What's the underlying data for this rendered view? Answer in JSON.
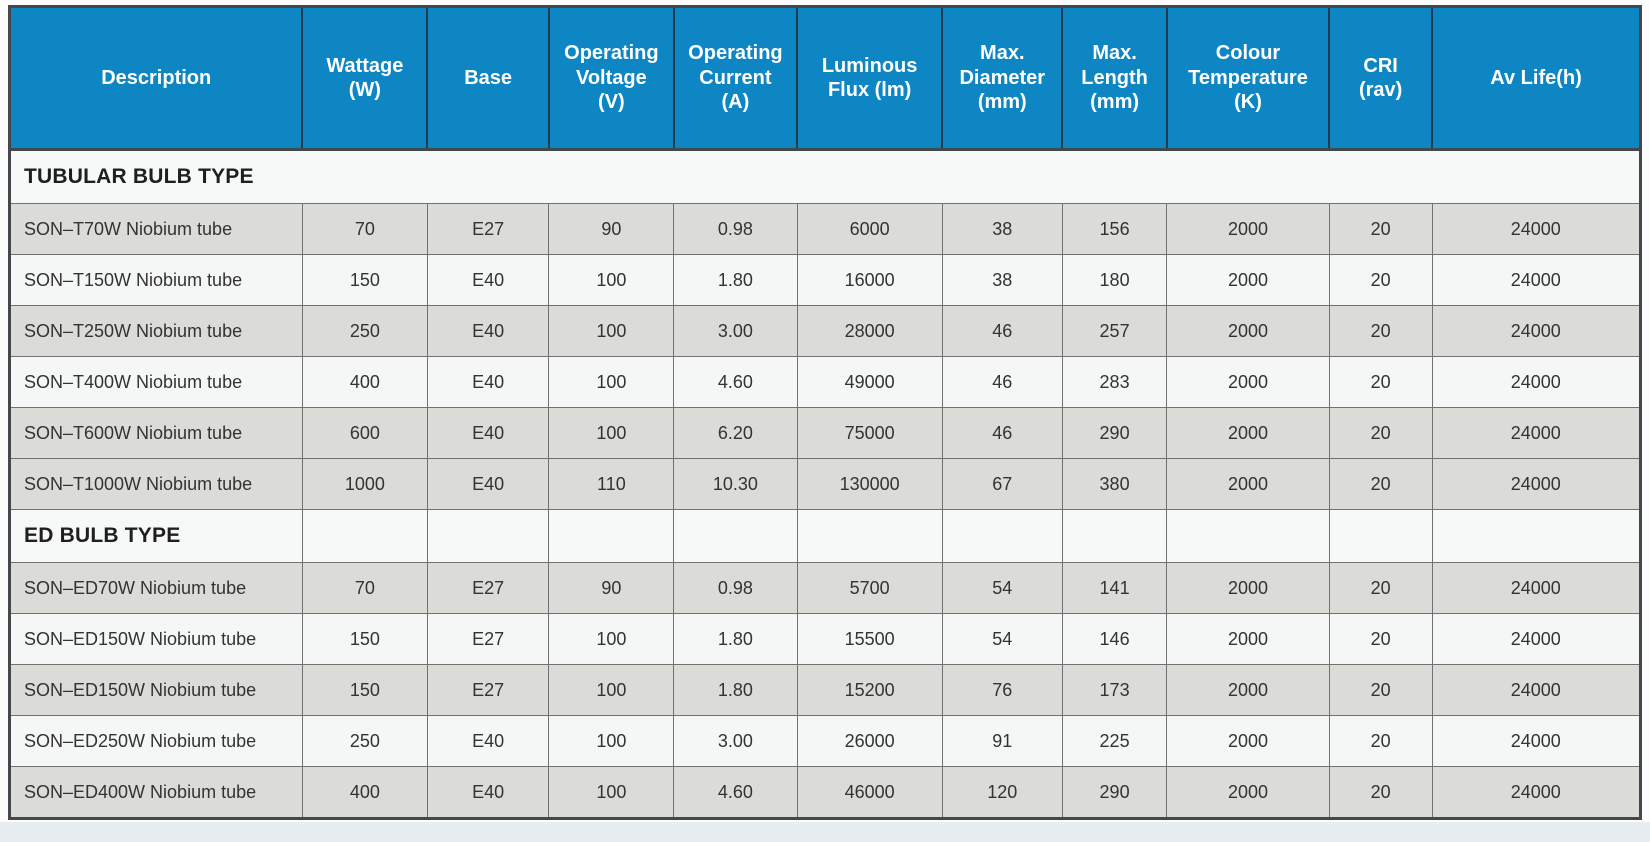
{
  "title": "SON lamp specification table",
  "colors": {
    "header_bg": "#0E86C4",
    "header_text": "#FFFFFF",
    "header_divider": "#1E3A4E",
    "outer_border": "#43484C",
    "grid_line": "#717171",
    "row_shaded": "#DBDBD7",
    "row_plain": "#F5F7F7",
    "section_bg": "#F7F9F9",
    "cell_text": "#333333",
    "page_band": "#E7EDF0"
  },
  "table": {
    "columns": [
      {
        "id": "description",
        "label": "Description"
      },
      {
        "id": "wattage",
        "label": "Wattage\n(W)"
      },
      {
        "id": "base",
        "label": "Base"
      },
      {
        "id": "operating_voltage",
        "label": "Operating\nVoltage\n(V)"
      },
      {
        "id": "operating_current",
        "label": "Operating\nCurrent\n(A)"
      },
      {
        "id": "luminous_flux",
        "label": "Luminous\nFlux (lm)"
      },
      {
        "id": "max_diameter",
        "label": "Max.\nDiameter\n(mm)"
      },
      {
        "id": "max_length",
        "label": "Max.\nLength\n(mm)"
      },
      {
        "id": "colour_temperature",
        "label": "Colour\nTemperature\n(K)"
      },
      {
        "id": "cri",
        "label": "CRI\n(rav)"
      },
      {
        "id": "av_life",
        "label": "Av Life(h)"
      }
    ],
    "sections": [
      {
        "title": "TUBULAR BULB TYPE",
        "divided": false,
        "rows": [
          {
            "shaded": true,
            "cells": [
              "SON–T70W Niobium tube",
              "70",
              "E27",
              "90",
              "0.98",
              "6000",
              "38",
              "156",
              "2000",
              "20",
              "24000"
            ]
          },
          {
            "shaded": false,
            "cells": [
              "SON–T150W  Niobium tube",
              "150",
              "E40",
              "100",
              "1.80",
              "16000",
              "38",
              "180",
              "2000",
              "20",
              "24000"
            ]
          },
          {
            "shaded": true,
            "cells": [
              "SON–T250W Niobium tube",
              "250",
              "E40",
              "100",
              "3.00",
              "28000",
              "46",
              "257",
              "2000",
              "20",
              "24000"
            ]
          },
          {
            "shaded": false,
            "cells": [
              "SON–T400W Niobium tube",
              "400",
              "E40",
              "100",
              "4.60",
              "49000",
              "46",
              "283",
              "2000",
              "20",
              "24000"
            ]
          },
          {
            "shaded": true,
            "cells": [
              "SON–T600W Niobium tube",
              "600",
              "E40",
              "100",
              "6.20",
              "75000",
              "46",
              "290",
              "2000",
              "20",
              "24000"
            ]
          },
          {
            "shaded": true,
            "cells": [
              "SON–T1000W Niobium tube",
              "1000",
              "E40",
              "110",
              "10.30",
              "130000",
              "67",
              "380",
              "2000",
              "20",
              "24000"
            ]
          }
        ]
      },
      {
        "title": "ED BULB TYPE",
        "divided": true,
        "rows": [
          {
            "shaded": true,
            "cells": [
              "SON–ED70W Niobium tube",
              "70",
              "E27",
              "90",
              "0.98",
              "5700",
              "54",
              "141",
              "2000",
              "20",
              "24000"
            ]
          },
          {
            "shaded": false,
            "cells": [
              "SON–ED150W Niobium tube",
              "150",
              "E27",
              "100",
              "1.80",
              "15500",
              "54",
              "146",
              "2000",
              "20",
              "24000"
            ]
          },
          {
            "shaded": true,
            "cells": [
              "SON–ED150W Niobium tube",
              "150",
              "E27",
              "100",
              "1.80",
              "15200",
              "76",
              "173",
              "2000",
              "20",
              "24000"
            ]
          },
          {
            "shaded": false,
            "cells": [
              "SON–ED250W Niobium tube",
              "250",
              "E40",
              "100",
              "3.00",
              "26000",
              "91",
              "225",
              "2000",
              "20",
              "24000"
            ]
          },
          {
            "shaded": true,
            "cells": [
              "SON–ED400W Niobium tube",
              "400",
              "E40",
              "100",
              "4.60",
              "46000",
              "120",
              "290",
              "2000",
              "20",
              "24000"
            ]
          }
        ]
      }
    ]
  }
}
